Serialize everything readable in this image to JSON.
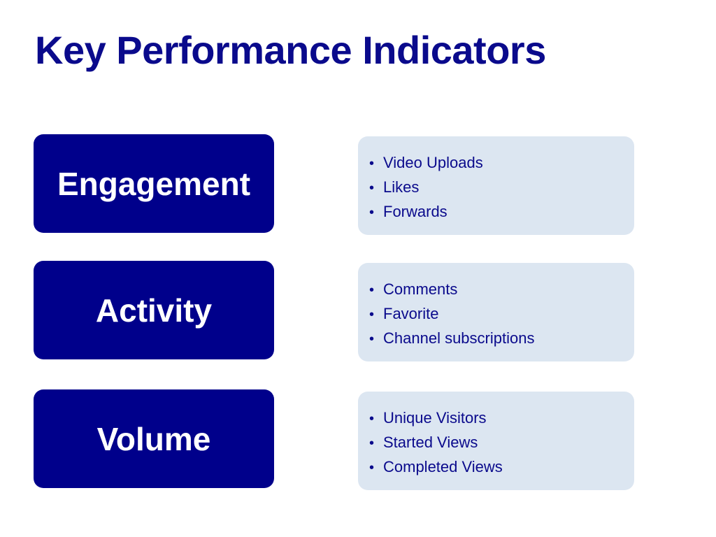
{
  "title": "Key Performance Indicators",
  "bullet_glyph": "•",
  "colors": {
    "title": "#0a0a8c",
    "category_background": "#00008b",
    "category_text": "#ffffff",
    "panel_background": "#dce6f1",
    "panel_text": "#0a0a8c"
  },
  "rows": [
    {
      "category": "Engagement",
      "items": [
        "Video Uploads",
        "Likes",
        "Forwards"
      ]
    },
    {
      "category": "Activity",
      "items": [
        "Comments",
        "Favorite",
        "Channel subscriptions"
      ]
    },
    {
      "category": "Volume",
      "items": [
        "Unique Visitors",
        "Started Views",
        "Completed Views"
      ]
    }
  ]
}
